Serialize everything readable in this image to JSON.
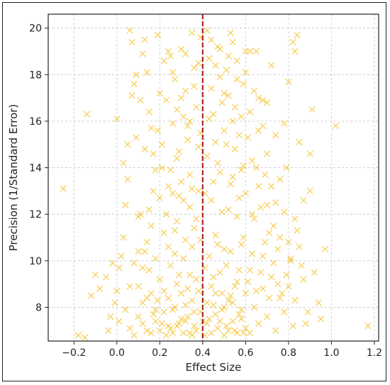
{
  "chart_data": {
    "type": "scatter",
    "title": "",
    "xlabel": "Effect Size",
    "ylabel": "Precision (1/Standard Error)",
    "xlim": [
      -0.32,
      1.22
    ],
    "ylim": [
      6.55,
      20.6
    ],
    "x_ticks": [
      -0.2,
      0.0,
      0.2,
      0.4,
      0.6,
      0.8,
      1.0,
      1.2
    ],
    "x_tick_labels": [
      "−0.2",
      "0.0",
      "0.2",
      "0.4",
      "0.6",
      "0.8",
      "1.0",
      "1.2"
    ],
    "y_ticks": [
      8,
      10,
      12,
      14,
      16,
      18,
      20
    ],
    "y_tick_labels": [
      "8",
      "10",
      "12",
      "14",
      "16",
      "18",
      "20"
    ],
    "grid": true,
    "marker": "x",
    "point_color": "#F2B705",
    "reference_line": {
      "x": 0.4,
      "color": "#B22222",
      "style": "dashed"
    },
    "points": [
      [
        -0.25,
        13.1
      ],
      [
        -0.14,
        16.3
      ],
      [
        -0.15,
        6.7
      ],
      [
        -0.18,
        6.8
      ],
      [
        -0.12,
        8.5
      ],
      [
        -0.1,
        9.4
      ],
      [
        -0.08,
        8.8
      ],
      [
        -0.05,
        9.3
      ],
      [
        -0.03,
        7.6
      ],
      [
        -0.02,
        9.9
      ],
      [
        0.0,
        8.7
      ],
      [
        0.01,
        7.4
      ],
      [
        0.02,
        10.2
      ],
      [
        0.0,
        16.1
      ],
      [
        0.03,
        14.2
      ],
      [
        0.04,
        12.4
      ],
      [
        0.05,
        13.5
      ],
      [
        0.06,
        19.9
      ],
      [
        0.07,
        19.4
      ],
      [
        0.08,
        17.6
      ],
      [
        0.09,
        15.3
      ],
      [
        0.1,
        11.9
      ],
      [
        0.1,
        10.4
      ],
      [
        0.12,
        18.9
      ],
      [
        0.13,
        19.5
      ],
      [
        0.14,
        18.1
      ],
      [
        0.15,
        16.4
      ],
      [
        0.16,
        15.7
      ],
      [
        0.17,
        14.6
      ],
      [
        0.18,
        13.9
      ],
      [
        0.19,
        19.7
      ],
      [
        0.2,
        17.2
      ],
      [
        0.21,
        15.0
      ],
      [
        0.22,
        18.6
      ],
      [
        0.23,
        16.9
      ],
      [
        0.24,
        13.2
      ],
      [
        0.25,
        18.8
      ],
      [
        0.26,
        15.9
      ],
      [
        0.27,
        17.8
      ],
      [
        0.28,
        14.4
      ],
      [
        0.29,
        12.8
      ],
      [
        0.3,
        19.1
      ],
      [
        0.31,
        16.2
      ],
      [
        0.32,
        17.3
      ],
      [
        0.33,
        15.2
      ],
      [
        0.34,
        13.7
      ],
      [
        0.35,
        19.8
      ],
      [
        0.36,
        18.3
      ],
      [
        0.37,
        16.6
      ],
      [
        0.38,
        14.9
      ],
      [
        0.39,
        19.6
      ],
      [
        0.42,
        19.9
      ],
      [
        0.43,
        18.7
      ],
      [
        0.44,
        17.4
      ],
      [
        0.45,
        16.3
      ],
      [
        0.46,
        15.1
      ],
      [
        0.47,
        19.2
      ],
      [
        0.48,
        17.9
      ],
      [
        0.49,
        16.8
      ],
      [
        0.5,
        15.6
      ],
      [
        0.51,
        18.2
      ],
      [
        0.52,
        17.1
      ],
      [
        0.53,
        19.8
      ],
      [
        0.54,
        16.0
      ],
      [
        0.55,
        14.8
      ],
      [
        0.56,
        18.6
      ],
      [
        0.57,
        15.4
      ],
      [
        0.58,
        13.9
      ],
      [
        0.59,
        17.6
      ],
      [
        0.6,
        19.0
      ],
      [
        0.62,
        16.4
      ],
      [
        0.63,
        14.3
      ],
      [
        0.65,
        19.0
      ],
      [
        0.66,
        17.0
      ],
      [
        0.68,
        15.8
      ],
      [
        0.7,
        16.8
      ],
      [
        0.72,
        18.4
      ],
      [
        0.74,
        15.4
      ],
      [
        0.76,
        13.5
      ],
      [
        0.78,
        15.9
      ],
      [
        0.8,
        17.7
      ],
      [
        0.82,
        19.4
      ],
      [
        0.83,
        19.0
      ],
      [
        0.84,
        19.7
      ],
      [
        0.85,
        15.1
      ],
      [
        0.87,
        12.6
      ],
      [
        0.9,
        14.6
      ],
      [
        0.91,
        16.5
      ],
      [
        0.92,
        9.5
      ],
      [
        0.94,
        8.2
      ],
      [
        0.95,
        7.5
      ],
      [
        0.97,
        10.5
      ],
      [
        1.02,
        15.8
      ],
      [
        1.17,
        7.2
      ],
      [
        0.88,
        7.3
      ],
      [
        0.9,
        13.0
      ],
      [
        0.86,
        9.8
      ],
      [
        0.84,
        11.3
      ],
      [
        0.8,
        10.8
      ],
      [
        0.78,
        12.1
      ],
      [
        0.75,
        9.0
      ],
      [
        0.73,
        11.5
      ],
      [
        0.7,
        12.4
      ],
      [
        0.68,
        10.2
      ],
      [
        0.66,
        13.2
      ],
      [
        0.64,
        11.8
      ],
      [
        0.62,
        9.6
      ],
      [
        0.6,
        12.9
      ],
      [
        0.58,
        10.7
      ],
      [
        0.56,
        11.9
      ],
      [
        0.54,
        13.6
      ],
      [
        0.52,
        12.2
      ],
      [
        0.5,
        10.5
      ],
      [
        0.48,
        13.8
      ],
      [
        0.46,
        11.1
      ],
      [
        0.44,
        12.6
      ],
      [
        0.42,
        14.5
      ],
      [
        0.38,
        13.0
      ],
      [
        0.36,
        11.4
      ],
      [
        0.34,
        12.3
      ],
      [
        0.32,
        10.9
      ],
      [
        0.3,
        13.4
      ],
      [
        0.28,
        11.7
      ],
      [
        0.26,
        12.9
      ],
      [
        0.24,
        10.6
      ],
      [
        0.22,
        11.2
      ],
      [
        0.2,
        12.7
      ],
      [
        0.18,
        10.1
      ],
      [
        0.16,
        11.5
      ],
      [
        0.14,
        10.8
      ],
      [
        0.12,
        9.7
      ],
      [
        0.11,
        12.0
      ],
      [
        0.08,
        9.9
      ],
      [
        0.06,
        8.9
      ],
      [
        0.04,
        7.9
      ],
      [
        0.06,
        7.1
      ],
      [
        0.08,
        6.8
      ],
      [
        0.1,
        7.6
      ],
      [
        0.12,
        8.2
      ],
      [
        0.14,
        7.0
      ],
      [
        0.16,
        8.6
      ],
      [
        0.18,
        7.4
      ],
      [
        0.2,
        9.2
      ],
      [
        0.22,
        7.8
      ],
      [
        0.24,
        8.4
      ],
      [
        0.26,
        6.9
      ],
      [
        0.28,
        9.0
      ],
      [
        0.3,
        7.5
      ],
      [
        0.32,
        8.1
      ],
      [
        0.34,
        9.4
      ],
      [
        0.36,
        7.2
      ],
      [
        0.38,
        8.7
      ],
      [
        0.42,
        7.3
      ],
      [
        0.44,
        8.9
      ],
      [
        0.46,
        7.7
      ],
      [
        0.48,
        9.5
      ],
      [
        0.5,
        6.8
      ],
      [
        0.52,
        8.3
      ],
      [
        0.54,
        7.4
      ],
      [
        0.56,
        9.1
      ],
      [
        0.58,
        7.9
      ],
      [
        0.6,
        8.6
      ],
      [
        0.62,
        6.9
      ],
      [
        0.64,
        8.0
      ],
      [
        0.66,
        7.3
      ],
      [
        0.68,
        8.8
      ],
      [
        0.7,
        7.6
      ],
      [
        0.72,
        9.3
      ],
      [
        0.74,
        7.0
      ],
      [
        0.76,
        8.4
      ],
      [
        0.78,
        7.8
      ],
      [
        0.8,
        8.9
      ],
      [
        0.82,
        7.2
      ],
      [
        0.25,
        7.1
      ],
      [
        0.27,
        8.0
      ],
      [
        0.29,
        7.3
      ],
      [
        0.31,
        6.9
      ],
      [
        0.33,
        7.6
      ],
      [
        0.35,
        8.3
      ],
      [
        0.37,
        7.0
      ],
      [
        0.39,
        7.8
      ],
      [
        0.41,
        6.8
      ],
      [
        0.43,
        7.5
      ],
      [
        0.45,
        8.1
      ],
      [
        0.47,
        7.1
      ],
      [
        0.49,
        7.9
      ],
      [
        0.51,
        7.2
      ],
      [
        0.53,
        8.5
      ],
      [
        0.55,
        7.0
      ],
      [
        0.57,
        7.7
      ],
      [
        0.59,
        6.9
      ],
      [
        0.21,
        7.3
      ],
      [
        0.23,
        6.8
      ],
      [
        0.19,
        8.3
      ],
      [
        0.17,
        7.7
      ],
      [
        0.15,
        9.6
      ],
      [
        0.13,
        10.4
      ],
      [
        0.25,
        9.8
      ],
      [
        0.27,
        10.3
      ],
      [
        0.29,
        9.4
      ],
      [
        0.31,
        10.1
      ],
      [
        0.33,
        8.8
      ],
      [
        0.35,
        10.6
      ],
      [
        0.37,
        9.2
      ],
      [
        0.39,
        10.9
      ],
      [
        0.41,
        9.7
      ],
      [
        0.43,
        10.2
      ],
      [
        0.45,
        9.3
      ],
      [
        0.47,
        10.7
      ],
      [
        0.49,
        8.6
      ],
      [
        0.51,
        9.8
      ],
      [
        0.53,
        10.4
      ],
      [
        0.55,
        8.9
      ],
      [
        0.57,
        9.6
      ],
      [
        0.59,
        11.0
      ],
      [
        0.61,
        9.1
      ],
      [
        0.63,
        10.3
      ],
      [
        0.65,
        8.7
      ],
      [
        0.67,
        9.5
      ],
      [
        0.69,
        10.8
      ],
      [
        0.71,
        8.4
      ],
      [
        0.73,
        9.9
      ],
      [
        0.75,
        10.5
      ],
      [
        0.77,
        8.6
      ],
      [
        0.79,
        9.4
      ],
      [
        0.81,
        10.1
      ],
      [
        0.83,
        8.3
      ],
      [
        0.23,
        12.0
      ],
      [
        0.25,
        13.9
      ],
      [
        0.27,
        11.3
      ],
      [
        0.29,
        14.7
      ],
      [
        0.31,
        12.6
      ],
      [
        0.33,
        15.8
      ],
      [
        0.35,
        13.1
      ],
      [
        0.37,
        11.8
      ],
      [
        0.39,
        15.5
      ],
      [
        0.41,
        12.9
      ],
      [
        0.43,
        16.1
      ],
      [
        0.45,
        13.4
      ],
      [
        0.47,
        14.2
      ],
      [
        0.49,
        12.1
      ],
      [
        0.51,
        15.0
      ],
      [
        0.53,
        13.3
      ],
      [
        0.55,
        16.6
      ],
      [
        0.57,
        12.7
      ],
      [
        0.59,
        14.1
      ],
      [
        0.61,
        15.3
      ],
      [
        0.63,
        12.0
      ],
      [
        0.65,
        14.0
      ],
      [
        0.67,
        12.3
      ],
      [
        0.69,
        13.7
      ],
      [
        0.71,
        11.2
      ],
      [
        0.21,
        14.0
      ],
      [
        0.19,
        15.6
      ],
      [
        0.17,
        13.0
      ],
      [
        0.15,
        12.2
      ],
      [
        0.13,
        14.8
      ],
      [
        0.11,
        16.9
      ],
      [
        0.09,
        18.0
      ],
      [
        0.07,
        17.1
      ],
      [
        0.05,
        15.0
      ],
      [
        0.03,
        11.0
      ],
      [
        0.01,
        9.7
      ],
      [
        -0.01,
        8.2
      ],
      [
        -0.04,
        7.0
      ],
      [
        0.35,
        6.8
      ],
      [
        0.4,
        7.4
      ],
      [
        0.42,
        8.2
      ],
      [
        0.44,
        6.9
      ],
      [
        0.46,
        8.6
      ],
      [
        0.48,
        7.4
      ],
      [
        0.5,
        8.0
      ],
      [
        0.52,
        7.0
      ],
      [
        0.54,
        8.2
      ],
      [
        0.56,
        6.9
      ],
      [
        0.58,
        7.5
      ],
      [
        0.6,
        7.1
      ],
      [
        0.36,
        7.8
      ],
      [
        0.34,
        6.9
      ],
      [
        0.32,
        7.4
      ],
      [
        0.3,
        8.6
      ],
      [
        0.28,
        7.2
      ],
      [
        0.26,
        7.9
      ],
      [
        0.24,
        7.2
      ],
      [
        0.22,
        8.7
      ],
      [
        0.2,
        7.0
      ],
      [
        0.18,
        7.9
      ],
      [
        0.16,
        6.9
      ],
      [
        0.14,
        8.4
      ],
      [
        0.12,
        7.3
      ],
      [
        0.1,
        8.9
      ],
      [
        0.3,
        17.0
      ],
      [
        0.26,
        18.1
      ],
      [
        0.24,
        19.0
      ],
      [
        0.28,
        16.5
      ],
      [
        0.32,
        18.9
      ],
      [
        0.36,
        17.5
      ],
      [
        0.34,
        16.0
      ],
      [
        0.38,
        18.5
      ],
      [
        0.44,
        19.5
      ],
      [
        0.46,
        18.4
      ],
      [
        0.48,
        19.1
      ],
      [
        0.5,
        17.2
      ],
      [
        0.52,
        18.8
      ],
      [
        0.54,
        19.4
      ],
      [
        0.56,
        17.8
      ],
      [
        0.58,
        16.2
      ],
      [
        0.6,
        18.1
      ],
      [
        0.62,
        19.0
      ],
      [
        0.64,
        17.3
      ],
      [
        0.66,
        15.6
      ],
      [
        0.68,
        16.9
      ],
      [
        0.7,
        14.6
      ],
      [
        0.72,
        13.2
      ],
      [
        0.74,
        12.5
      ],
      [
        0.76,
        11.0
      ],
      [
        0.79,
        14.0
      ],
      [
        0.81,
        10.0
      ],
      [
        0.83,
        11.8
      ],
      [
        0.85,
        10.6
      ],
      [
        0.87,
        9.2
      ],
      [
        0.89,
        7.8
      ]
    ]
  }
}
